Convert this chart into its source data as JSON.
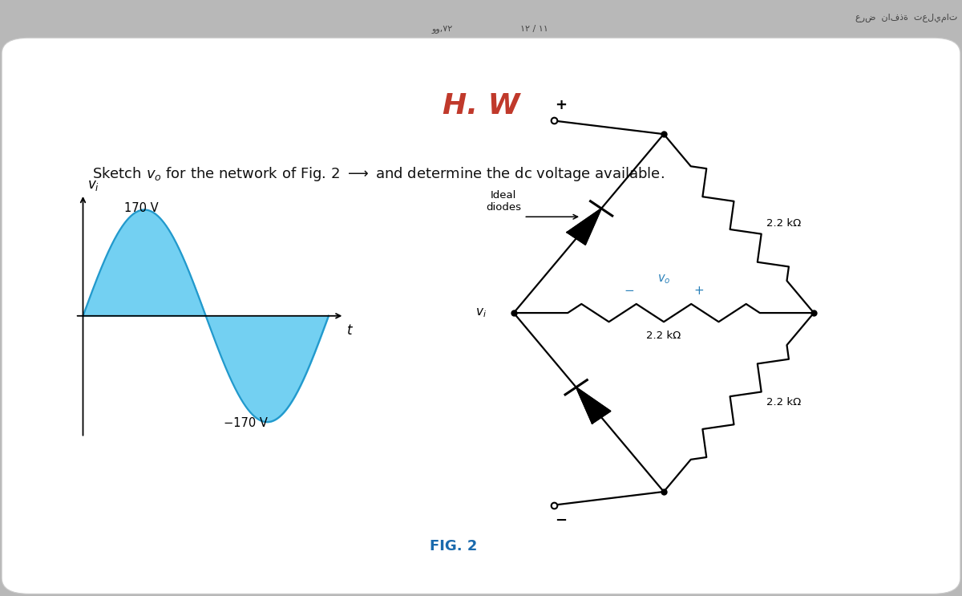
{
  "title": "H. W",
  "title_color": "#c0392b",
  "title_fontsize": 26,
  "card_color": "#ffffff",
  "outer_bg": "#b8b8b8",
  "sine_amplitude": 170,
  "sine_fill_color": "#5bc8f0",
  "sine_line_color": "#2299cc",
  "fig_label": "FIG. 2",
  "fig_label_color": "#1a6aad",
  "fig_label_fontsize": 13,
  "resistor_label": "2.2 kΩ",
  "vo_color": "#2980b9",
  "toolbar_bg": "#d8d8d8",
  "toolbar_text_color": "#444444"
}
